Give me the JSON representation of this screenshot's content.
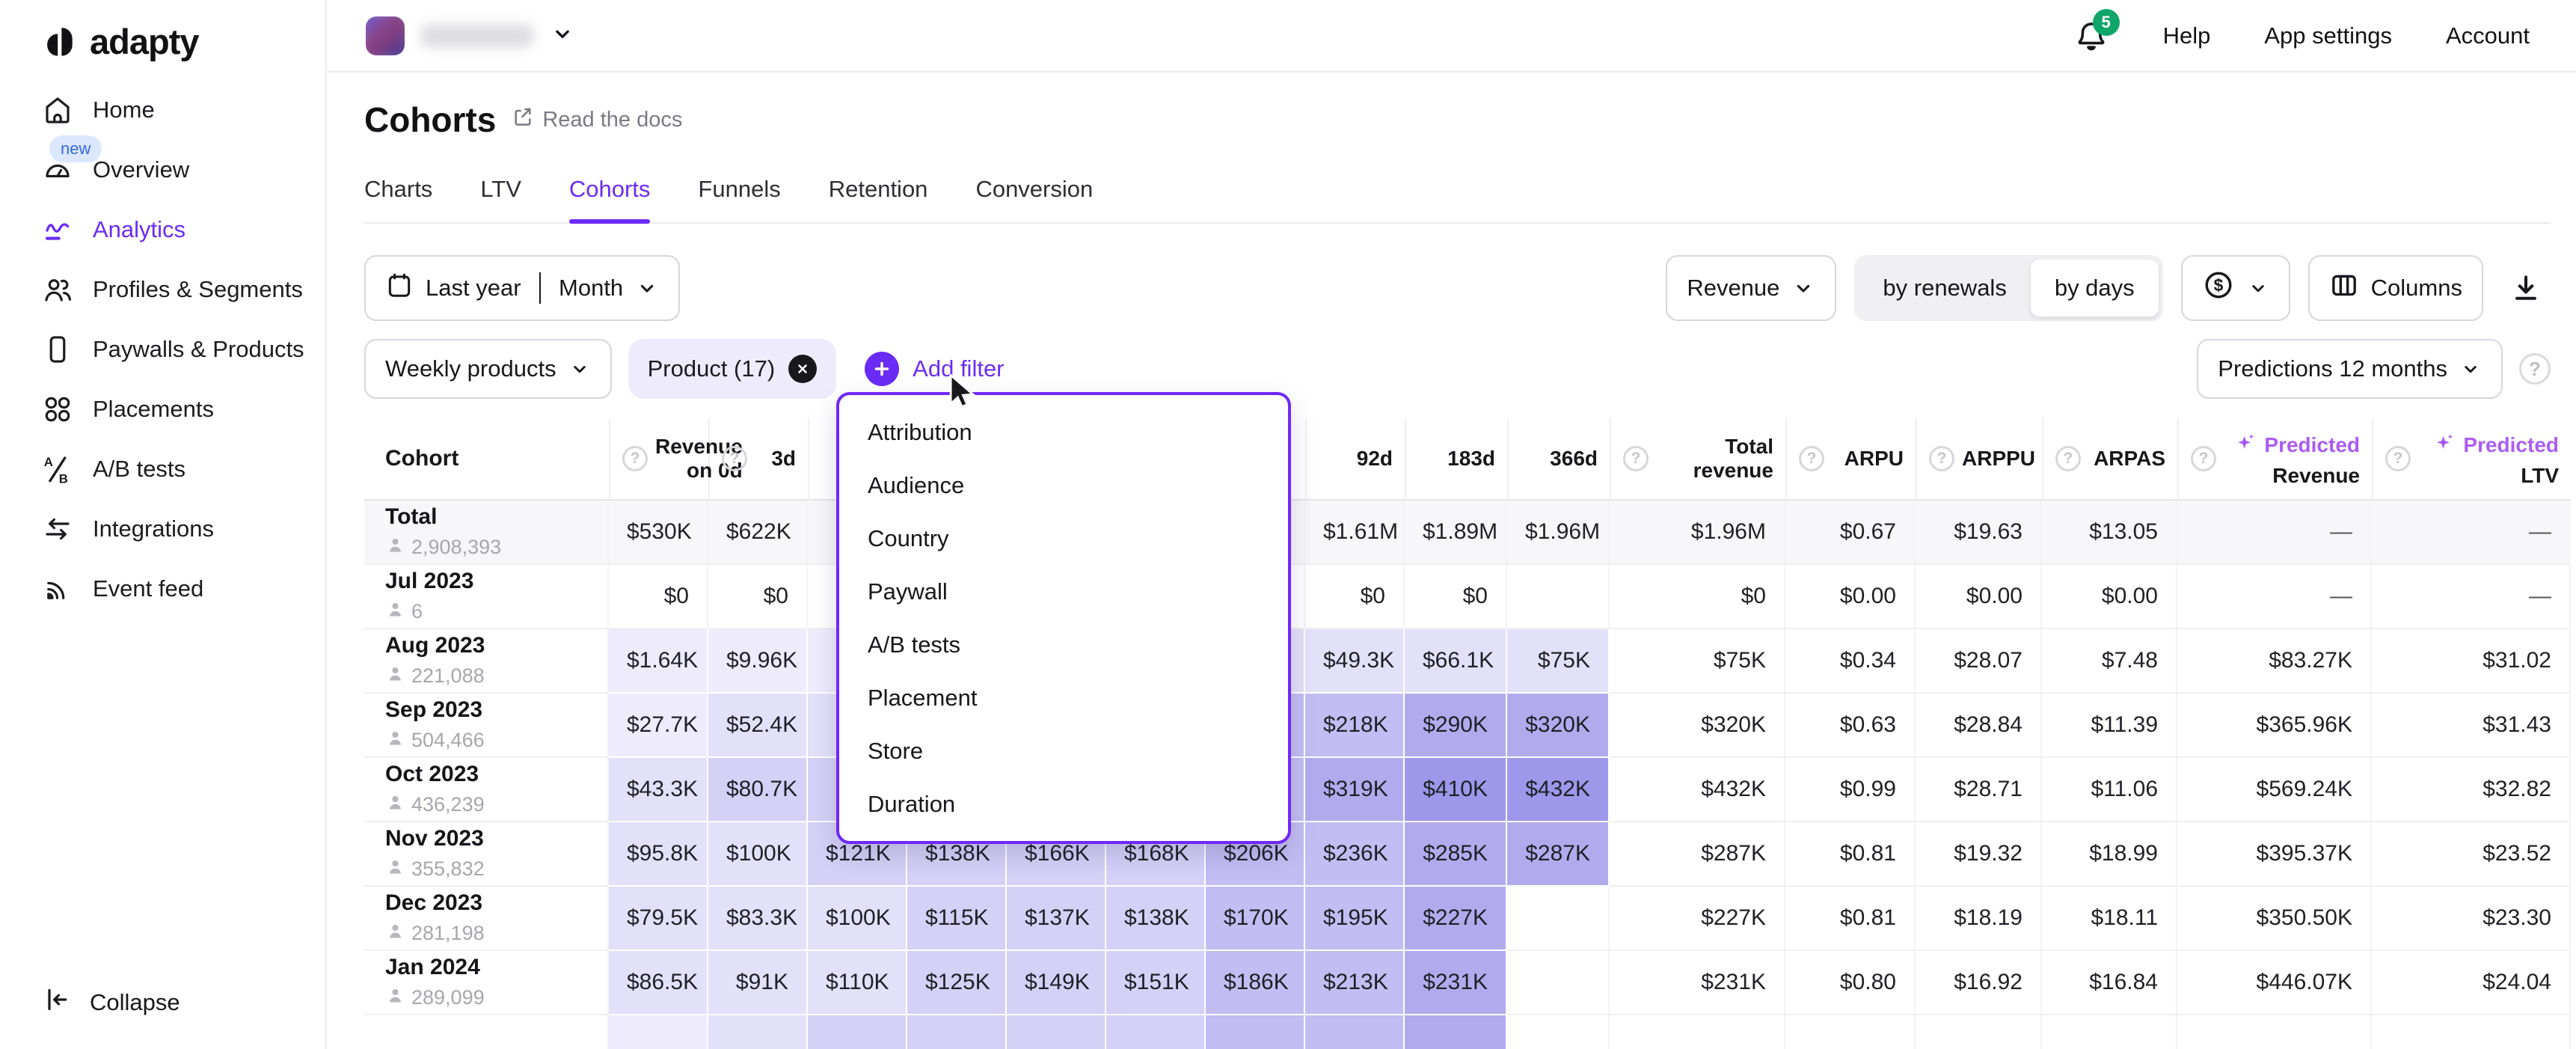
{
  "brand": {
    "logo_text": "adapty"
  },
  "topbar": {
    "notification_count": "5",
    "links": {
      "help": "Help",
      "app_settings": "App settings",
      "account": "Account"
    }
  },
  "sidebar": {
    "items": [
      {
        "id": "home",
        "label": "Home",
        "icon": "home-icon"
      },
      {
        "id": "overview",
        "label": "Overview",
        "icon": "gauge-icon",
        "badge": "new"
      },
      {
        "id": "analytics",
        "label": "Analytics",
        "icon": "line-chart-icon",
        "active": true
      },
      {
        "id": "profiles-segments",
        "label": "Profiles & Segments",
        "icon": "people-icon"
      },
      {
        "id": "paywalls-products",
        "label": "Paywalls & Products",
        "icon": "phone-icon"
      },
      {
        "id": "placements",
        "label": "Placements",
        "icon": "grid-icon"
      },
      {
        "id": "ab-tests",
        "label": "A/B tests",
        "icon": "ab-test-icon"
      },
      {
        "id": "integrations",
        "label": "Integrations",
        "icon": "arrows-swap-icon"
      },
      {
        "id": "event-feed",
        "label": "Event feed",
        "icon": "rss-icon"
      }
    ],
    "collapse_label": "Collapse"
  },
  "page": {
    "title": "Cohorts",
    "docs_link": "Read the docs"
  },
  "tabs": [
    {
      "id": "charts",
      "label": "Charts"
    },
    {
      "id": "ltv",
      "label": "LTV"
    },
    {
      "id": "cohorts",
      "label": "Cohorts",
      "active": true
    },
    {
      "id": "funnels",
      "label": "Funnels"
    },
    {
      "id": "retention",
      "label": "Retention"
    },
    {
      "id": "conversion",
      "label": "Conversion"
    }
  ],
  "filters": {
    "date_range": "Last year",
    "granularity": "Month",
    "metric": "Revenue",
    "toggle": {
      "options": [
        "by renewals",
        "by days"
      ],
      "selected": "by days"
    },
    "currency": "$",
    "columns_label": "Columns",
    "products_filter": "Weekly products",
    "product_chip": "Product (17)",
    "add_filter": "Add filter",
    "predictions": "Predictions 12 months"
  },
  "filter_menu": {
    "items": [
      "Attribution",
      "Audience",
      "Country",
      "Paywall",
      "A/B tests",
      "Placement",
      "Store",
      "Duration"
    ]
  },
  "theme": {
    "accent": "#6b2bf7",
    "predicted_label_color": "#ab5df0",
    "notification_badge_color": "#10a56b",
    "new_badge_bg": "#dbe7fe",
    "new_badge_color": "#3569e0",
    "total_row_bg": "#f7f7fa",
    "heatmap": [
      "#edebfc",
      "#e3e0fa",
      "#d4d0f6",
      "#c2bdf2",
      "#b1abee",
      "#9e97ea"
    ]
  },
  "table": {
    "columns": [
      {
        "key": "cohort",
        "label": "Cohort"
      },
      {
        "key": "rev-0d",
        "label": "Revenue on 0d",
        "help": true
      },
      {
        "key": "3d",
        "label": "3d",
        "help": true
      },
      {
        "key": "hidden-1",
        "label": ""
      },
      {
        "key": "hidden-2",
        "label": ""
      },
      {
        "key": "hidden-3",
        "label": ""
      },
      {
        "key": "hidden-4",
        "label": ""
      },
      {
        "key": "hidden-5",
        "label": ""
      },
      {
        "key": "92d",
        "label": "92d"
      },
      {
        "key": "183d",
        "label": "183d"
      },
      {
        "key": "366d",
        "label": "366d"
      },
      {
        "key": "total-revenue",
        "label": "Total revenue",
        "help": true
      },
      {
        "key": "arpu",
        "label": "ARPU",
        "help": true
      },
      {
        "key": "arppu",
        "label": "ARPPU",
        "help": true
      },
      {
        "key": "arpas",
        "label": "ARPAS",
        "help": true
      },
      {
        "key": "predicted-revenue",
        "label_top": "Predicted",
        "label_bottom": "Revenue",
        "help": true,
        "predicted": true
      },
      {
        "key": "predicted-ltv",
        "label_top": "Predicted",
        "label_bottom": "LTV",
        "help": true,
        "predicted": true
      }
    ],
    "rows": [
      {
        "cohort": "Total",
        "users": "2,908,393",
        "type": "total",
        "cells": [
          [
            "$530K",
            0
          ],
          [
            "$622K",
            0
          ],
          [
            "",
            0
          ],
          [
            "",
            0
          ],
          [
            "",
            0
          ],
          [
            "",
            0
          ],
          [
            "",
            0
          ],
          [
            "$1.61M",
            0
          ],
          [
            "$1.89M",
            0
          ],
          [
            "$1.96M",
            0
          ],
          [
            "$1.96M",
            0
          ],
          [
            "$0.67",
            0
          ],
          [
            "$19.63",
            0
          ],
          [
            "$13.05",
            0
          ],
          [
            "—",
            0
          ],
          [
            "—",
            0
          ]
        ]
      },
      {
        "cohort": "Jul 2023",
        "users": "6",
        "cells": [
          [
            "$0",
            0
          ],
          [
            "$0",
            0
          ],
          [
            "",
            0
          ],
          [
            "",
            0
          ],
          [
            "",
            0
          ],
          [
            "",
            0
          ],
          [
            "",
            0
          ],
          [
            "$0",
            0
          ],
          [
            "$0",
            0
          ],
          [
            "",
            0
          ],
          [
            "$0",
            0
          ],
          [
            "$0.00",
            0
          ],
          [
            "$0.00",
            0
          ],
          [
            "$0.00",
            0
          ],
          [
            "—",
            0
          ],
          [
            "—",
            0
          ]
        ]
      },
      {
        "cohort": "Aug 2023",
        "users": "221,088",
        "cells": [
          [
            "$1.64K",
            1
          ],
          [
            "$9.96K",
            1
          ],
          [
            "",
            1
          ],
          [
            "",
            1
          ],
          [
            "",
            2
          ],
          [
            "",
            2
          ],
          [
            "",
            2
          ],
          [
            "$49.3K",
            2
          ],
          [
            "$66.1K",
            2
          ],
          [
            "$75K",
            2
          ],
          [
            "$75K",
            0
          ],
          [
            "$0.34",
            0
          ],
          [
            "$28.07",
            0
          ],
          [
            "$7.48",
            0
          ],
          [
            "$83.27K",
            0
          ],
          [
            "$31.02",
            0
          ]
        ]
      },
      {
        "cohort": "Sep 2023",
        "users": "504,466",
        "cells": [
          [
            "$27.7K",
            1
          ],
          [
            "$52.4K",
            2
          ],
          [
            "",
            2
          ],
          [
            "",
            3
          ],
          [
            "",
            3
          ],
          [
            "",
            3
          ],
          [
            "",
            4
          ],
          [
            "$218K",
            4
          ],
          [
            "$290K",
            5
          ],
          [
            "$320K",
            5
          ],
          [
            "$320K",
            0
          ],
          [
            "$0.63",
            0
          ],
          [
            "$28.84",
            0
          ],
          [
            "$11.39",
            0
          ],
          [
            "$365.96K",
            0
          ],
          [
            "$31.43",
            0
          ]
        ]
      },
      {
        "cohort": "Oct 2023",
        "users": "436,239",
        "cells": [
          [
            "$43.3K",
            2
          ],
          [
            "$80.7K",
            3
          ],
          [
            "",
            3
          ],
          [
            "",
            3
          ],
          [
            "",
            4
          ],
          [
            "",
            4
          ],
          [
            "",
            4
          ],
          [
            "$319K",
            5
          ],
          [
            "$410K",
            6
          ],
          [
            "$432K",
            6
          ],
          [
            "$432K",
            0
          ],
          [
            "$0.99",
            0
          ],
          [
            "$28.71",
            0
          ],
          [
            "$11.06",
            0
          ],
          [
            "$569.24K",
            0
          ],
          [
            "$32.82",
            0
          ]
        ]
      },
      {
        "cohort": "Nov 2023",
        "users": "355,832",
        "cells": [
          [
            "$95.8K",
            2
          ],
          [
            "$100K",
            2
          ],
          [
            "$121K",
            3
          ],
          [
            "$138K",
            3
          ],
          [
            "$166K",
            3
          ],
          [
            "$168K",
            3
          ],
          [
            "$206K",
            4
          ],
          [
            "$236K",
            4
          ],
          [
            "$285K",
            5
          ],
          [
            "$287K",
            5
          ],
          [
            "$287K",
            0
          ],
          [
            "$0.81",
            0
          ],
          [
            "$19.32",
            0
          ],
          [
            "$18.99",
            0
          ],
          [
            "$395.37K",
            0
          ],
          [
            "$23.52",
            0
          ]
        ]
      },
      {
        "cohort": "Dec 2023",
        "users": "281,198",
        "cells": [
          [
            "$79.5K",
            2
          ],
          [
            "$83.3K",
            2
          ],
          [
            "$100K",
            2
          ],
          [
            "$115K",
            3
          ],
          [
            "$137K",
            3
          ],
          [
            "$138K",
            3
          ],
          [
            "$170K",
            4
          ],
          [
            "$195K",
            4
          ],
          [
            "$227K",
            5
          ],
          [
            "",
            0
          ],
          [
            "$227K",
            0
          ],
          [
            "$0.81",
            0
          ],
          [
            "$18.19",
            0
          ],
          [
            "$18.11",
            0
          ],
          [
            "$350.50K",
            0
          ],
          [
            "$23.30",
            0
          ]
        ]
      },
      {
        "cohort": "Jan 2024",
        "users": "289,099",
        "cells": [
          [
            "$86.5K",
            2
          ],
          [
            "$91K",
            2
          ],
          [
            "$110K",
            2
          ],
          [
            "$125K",
            3
          ],
          [
            "$149K",
            3
          ],
          [
            "$151K",
            3
          ],
          [
            "$186K",
            4
          ],
          [
            "$213K",
            4
          ],
          [
            "$231K",
            5
          ],
          [
            "",
            0
          ],
          [
            "$231K",
            0
          ],
          [
            "$0.80",
            0
          ],
          [
            "$16.92",
            0
          ],
          [
            "$16.84",
            0
          ],
          [
            "$446.07K",
            0
          ],
          [
            "$24.04",
            0
          ]
        ]
      },
      {
        "cohort": "",
        "users": "",
        "partial": true,
        "cells": [
          [
            "",
            1
          ],
          [
            "",
            2
          ],
          [
            "",
            3
          ],
          [
            "",
            3
          ],
          [
            "",
            3
          ],
          [
            "",
            3
          ],
          [
            "",
            4
          ],
          [
            "",
            4
          ],
          [
            "",
            5
          ],
          [
            "",
            0
          ],
          [
            "",
            0
          ],
          [
            "",
            0
          ],
          [
            "",
            0
          ],
          [
            "",
            0
          ],
          [
            "",
            0
          ],
          [
            "",
            0
          ]
        ]
      }
    ]
  }
}
